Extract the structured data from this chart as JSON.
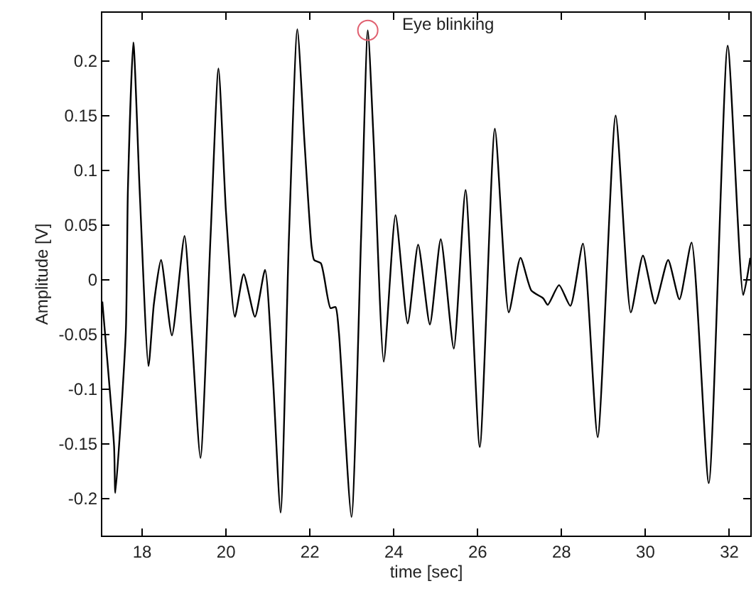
{
  "chart_data": {
    "type": "line",
    "xlabel": "time [sec]",
    "ylabel": "Amplitude [V]",
    "annotations": [
      {
        "text": "Eye blinking",
        "x": 23.38,
        "y": 0.228
      }
    ],
    "x": [
      17.05,
      17.33,
      17.36,
      17.61,
      17.66,
      17.79,
      17.94,
      18.15,
      18.28,
      18.45,
      18.71,
      19.01,
      19.18,
      19.39,
      19.63,
      19.82,
      20.0,
      20.21,
      20.42,
      20.69,
      20.93,
      21.12,
      21.3,
      21.5,
      21.7,
      21.87,
      22.04,
      22.1,
      22.26,
      22.49,
      22.61,
      22.69,
      22.99,
      23.22,
      23.38,
      23.52,
      23.76,
      24.04,
      24.33,
      24.58,
      24.86,
      25.12,
      25.43,
      25.71,
      26.05,
      26.41,
      26.74,
      27.02,
      27.28,
      27.56,
      27.67,
      27.94,
      28.21,
      28.51,
      28.86,
      29.29,
      29.65,
      29.94,
      30.23,
      30.54,
      30.81,
      31.1,
      31.51,
      31.96,
      32.33,
      32.5
    ],
    "series": [
      {
        "color": "#000000",
        "values": [
          -0.02,
          -0.152,
          -0.195,
          -0.048,
          0.082,
          0.217,
          0.082,
          -0.079,
          -0.022,
          0.018,
          -0.051,
          0.04,
          -0.048,
          -0.163,
          0.039,
          0.193,
          0.061,
          -0.034,
          0.005,
          -0.034,
          0.009,
          -0.091,
          -0.213,
          0.039,
          0.229,
          0.126,
          0.03,
          0.018,
          0.015,
          -0.026,
          -0.025,
          -0.048,
          -0.217,
          0.039,
          0.228,
          0.126,
          -0.075,
          0.059,
          -0.04,
          0.032,
          -0.041,
          0.037,
          -0.063,
          0.082,
          -0.153,
          0.138,
          -0.03,
          0.02,
          -0.01,
          -0.017,
          -0.023,
          -0.005,
          -0.024,
          0.033,
          -0.144,
          0.15,
          -0.03,
          0.022,
          -0.022,
          0.018,
          -0.018,
          0.034,
          -0.186,
          0.214,
          -0.014,
          0.02
        ]
      },
      {
        "type": "scatter",
        "marker": "circle",
        "color": "#e06070",
        "x": [
          23.38
        ],
        "values": [
          0.228
        ]
      }
    ],
    "xlim": [
      17.05,
      32.5
    ],
    "ylim": [
      -0.234,
      0.244
    ],
    "xticks": [
      18,
      20,
      22,
      24,
      26,
      28,
      30,
      32
    ],
    "yticks": [
      -0.2,
      -0.15,
      -0.1,
      -0.05,
      0,
      0.05,
      0.1,
      0.15,
      0.2
    ],
    "marker": "none",
    "line_style": "solid"
  }
}
